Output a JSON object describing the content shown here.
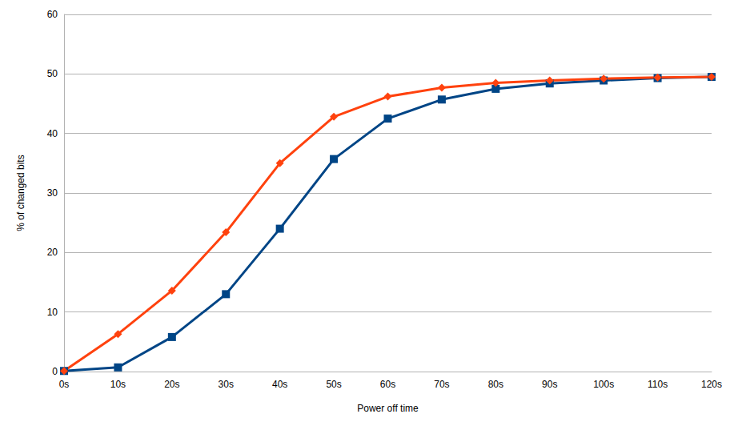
{
  "chart_data": {
    "type": "line",
    "xlabel": "Power off time",
    "ylabel": "% of changed bits",
    "categories": [
      "0s",
      "10s",
      "20s",
      "30s",
      "40s",
      "50s",
      "60s",
      "70s",
      "80s",
      "90s",
      "100s",
      "110s",
      "120s"
    ],
    "series": [
      {
        "color": "#004586",
        "marker": "square",
        "values": [
          0.1,
          0.7,
          5.8,
          13,
          24,
          35.7,
          42.5,
          45.7,
          47.5,
          48.4,
          48.9,
          49.3,
          49.5
        ]
      },
      {
        "color": "#ff420e",
        "marker": "diamond",
        "values": [
          0.1,
          6.3,
          13.6,
          23.4,
          35,
          42.8,
          46.2,
          47.7,
          48.5,
          48.9,
          49.2,
          49.4,
          49.5
        ]
      }
    ],
    "ylim": [
      0,
      60
    ],
    "yticks": [
      0,
      10,
      20,
      30,
      40,
      50,
      60
    ],
    "grid": true
  }
}
